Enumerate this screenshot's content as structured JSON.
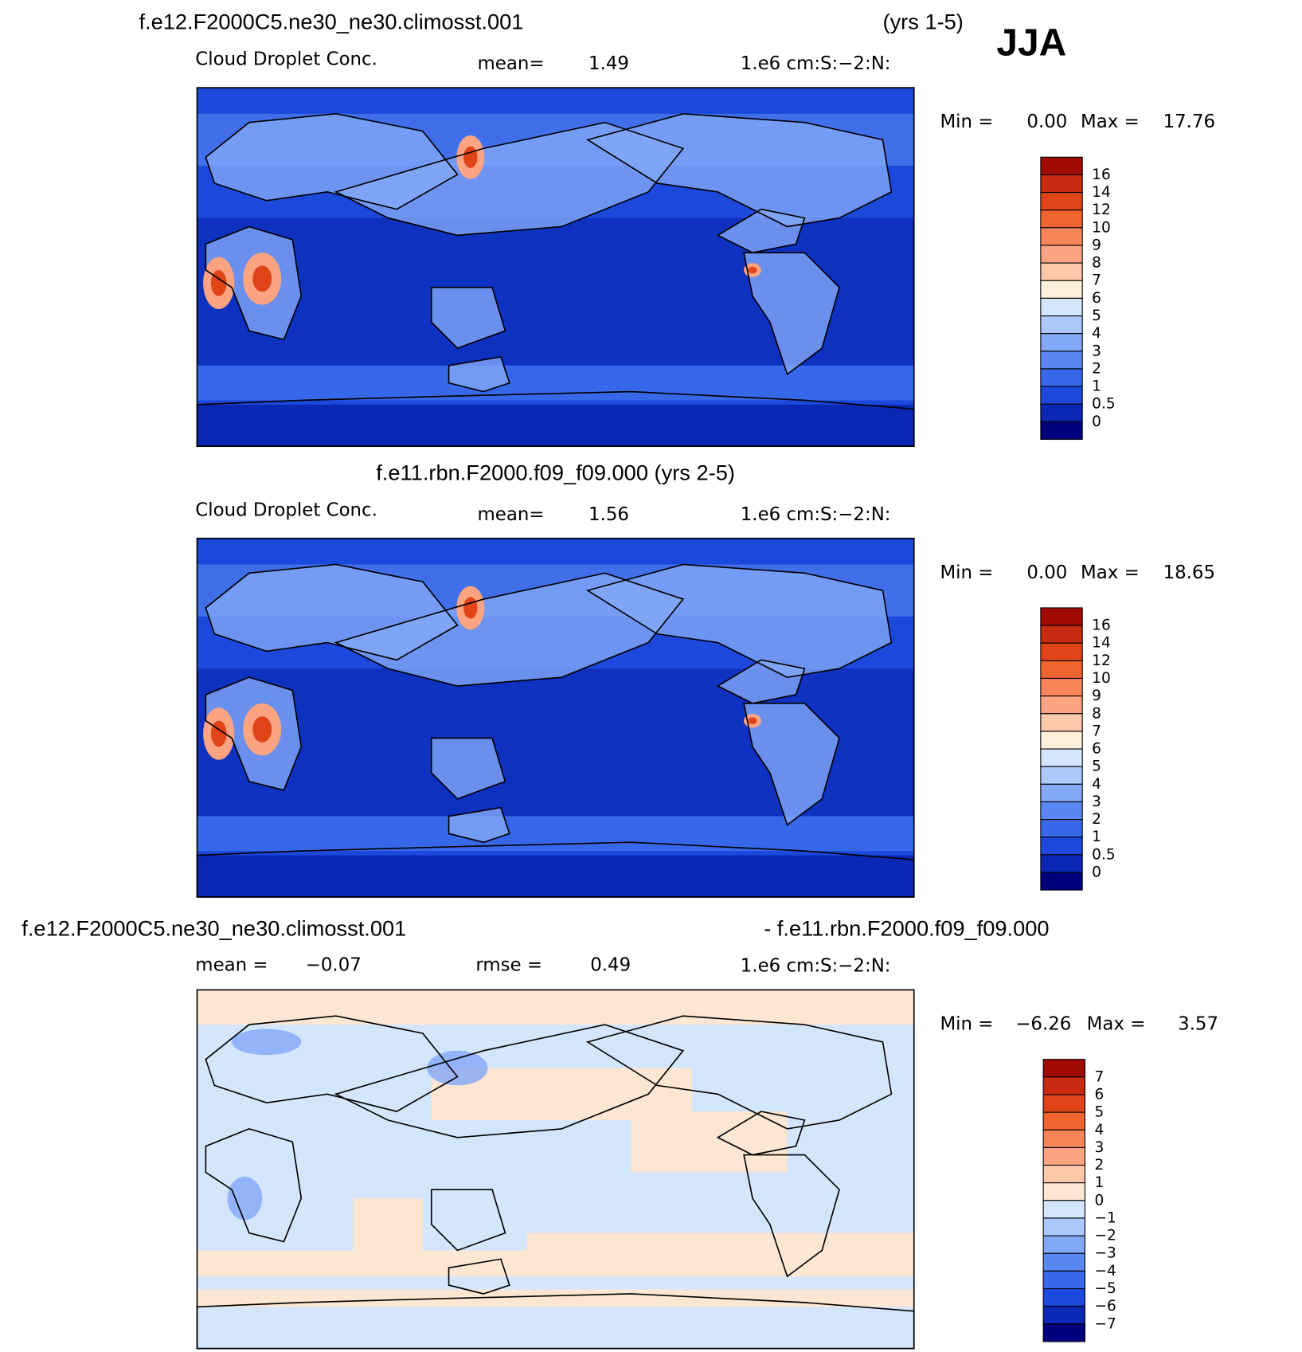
{
  "header": {
    "season": "JJA"
  },
  "panels": [
    {
      "title": "f.e12.F2000C5.ne30_ne30.climosst.001",
      "title_note": "(yrs 1-5)",
      "variable": "Cloud Droplet Conc.",
      "mean_label": "mean=",
      "mean": "1.49",
      "units": "1.e6 cm:S:−2:N:",
      "min_label": "Min =",
      "min": "0.00",
      "max_label": "Max =",
      "max": "17.76",
      "colorbar_labels": [
        "16",
        "14",
        "12",
        "10",
        "9",
        "8",
        "7",
        "6",
        "5",
        "4",
        "3",
        "2",
        "1",
        "0.5",
        "0"
      ]
    },
    {
      "title": "f.e11.rbn.F2000.f09_f09.000 (yrs 2-5)",
      "variable": "Cloud Droplet Conc.",
      "mean_label": "mean=",
      "mean": "1.56",
      "units": "1.e6 cm:S:−2:N:",
      "min_label": "Min =",
      "min": "0.00",
      "max_label": "Max =",
      "max": "18.65",
      "colorbar_labels": [
        "16",
        "14",
        "12",
        "10",
        "9",
        "8",
        "7",
        "6",
        "5",
        "4",
        "3",
        "2",
        "1",
        "0.5",
        "0"
      ]
    },
    {
      "title": "f.e12.F2000C5.ne30_ne30.climosst.001",
      "title_note": "- f.e11.rbn.F2000.f09_f09.000",
      "mean_label": "mean =",
      "mean": "−0.07",
      "rmse_label": "rmse =",
      "rmse": "0.49",
      "units": "1.e6 cm:S:−2:N:",
      "min_label": "Min =",
      "min": "−6.26",
      "max_label": "Max =",
      "max": "3.57",
      "colorbar_labels": [
        "7",
        "6",
        "5",
        "4",
        "3",
        "2",
        "1",
        "0",
        "−1",
        "−2",
        "−3",
        "−4",
        "−5",
        "−6",
        "−7"
      ]
    }
  ]
}
